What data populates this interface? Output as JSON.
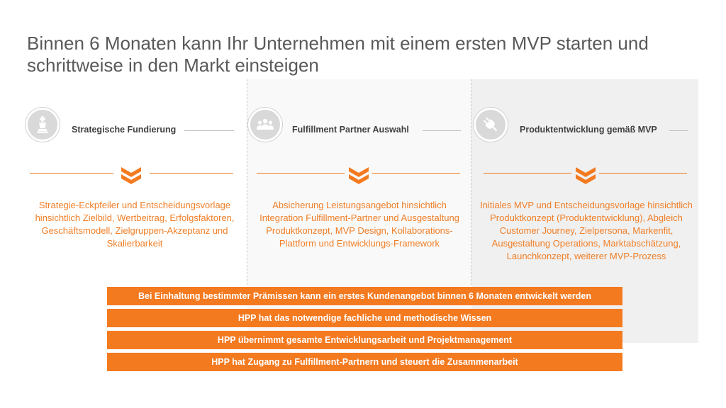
{
  "title": "Binnen 6 Monaten kann Ihr Unternehmen mit einem ersten MVP starten und schrittweise in den Markt einsteigen",
  "colors": {
    "accent": "#f47a20",
    "text": "#404040",
    "title": "#595959",
    "icon_bg": "#d9d9d9"
  },
  "columns": [
    {
      "icon": "chess-king-icon",
      "label": "Strategische Fundierung",
      "description": "Strategie-Eckpfeiler und Entscheidungsvorlage hinsichtlich Zielbild, Wertbeitrag, Erfolgsfaktoren, Geschäftsmodell, Zielgruppen-Akzeptanz und Skalierbarkeit"
    },
    {
      "icon": "people-group-icon",
      "label": "Fulfillment Partner Auswahl",
      "description": "Absicherung Leistungsangebot hinsichtlich Integration Fulfillment-Partner und Ausgestaltung Produktkonzept, MVP Design, Kollaborations-Plattform und Entwicklungs-Framework"
    },
    {
      "icon": "plug-icon",
      "label": "Produktentwicklung gemäß MVP",
      "description": "Initiales MVP und Entscheidungsvorlage hinsichtlich Produktkonzept (Produktentwicklung), Abgleich Customer Journey, Zielpersona, Markenfit, Ausgestaltung Operations, Marktabschätzung, Launchkonzept, weiterer MVP-Prozess"
    }
  ],
  "bars": [
    "Bei Einhaltung bestimmter Prämissen kann ein erstes Kundenangebot binnen 6 Monaten entwickelt werden",
    "HPP hat das notwendige fachliche und methodische Wissen",
    "HPP übernimmt gesamte Entwicklungsarbeit und Projektmanagement",
    "HPP hat Zugang zu Fulfillment-Partnern und steuert die Zusammenarbeit"
  ]
}
